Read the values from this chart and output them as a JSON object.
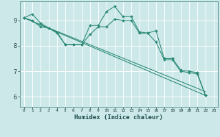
{
  "xlabel": "Humidex (Indice chaleur)",
  "xlim": [
    -0.5,
    23.5
  ],
  "ylim": [
    5.6,
    9.75
  ],
  "bg_color": "#cce8e8",
  "grid_color": "#ffffff",
  "line_color": "#2e8b78",
  "xticks": [
    0,
    1,
    2,
    3,
    4,
    5,
    6,
    7,
    8,
    9,
    10,
    11,
    12,
    13,
    14,
    15,
    16,
    17,
    18,
    19,
    20,
    21,
    22,
    23
  ],
  "yticks": [
    6,
    7,
    8,
    9
  ],
  "line1_x": [
    0,
    1,
    2,
    3,
    4,
    5,
    6,
    7,
    8,
    9,
    10,
    11,
    12,
    13,
    14,
    15,
    16,
    17,
    18,
    19,
    20,
    21,
    22
  ],
  "line1_y": [
    9.1,
    9.25,
    8.9,
    8.7,
    8.55,
    8.05,
    8.05,
    8.05,
    8.8,
    8.8,
    9.35,
    9.55,
    9.15,
    9.15,
    8.55,
    8.5,
    8.6,
    7.5,
    7.5,
    7.05,
    7.0,
    6.95,
    6.05
  ],
  "line2_x": [
    0,
    1,
    2,
    3,
    4,
    5,
    6,
    7,
    8,
    9,
    10,
    11,
    12,
    13,
    14,
    15,
    16,
    17,
    18,
    19,
    20,
    21,
    22
  ],
  "line2_y": [
    9.1,
    9.0,
    8.75,
    8.7,
    8.5,
    8.05,
    8.05,
    8.05,
    8.45,
    8.75,
    8.75,
    9.05,
    9.0,
    9.0,
    8.5,
    8.5,
    8.15,
    7.45,
    7.45,
    7.0,
    6.95,
    6.9,
    6.05
  ],
  "trend1_x": [
    0,
    22
  ],
  "trend1_y": [
    9.1,
    6.05
  ],
  "trend2_x": [
    0,
    22
  ],
  "trend2_y": [
    9.1,
    6.2
  ]
}
